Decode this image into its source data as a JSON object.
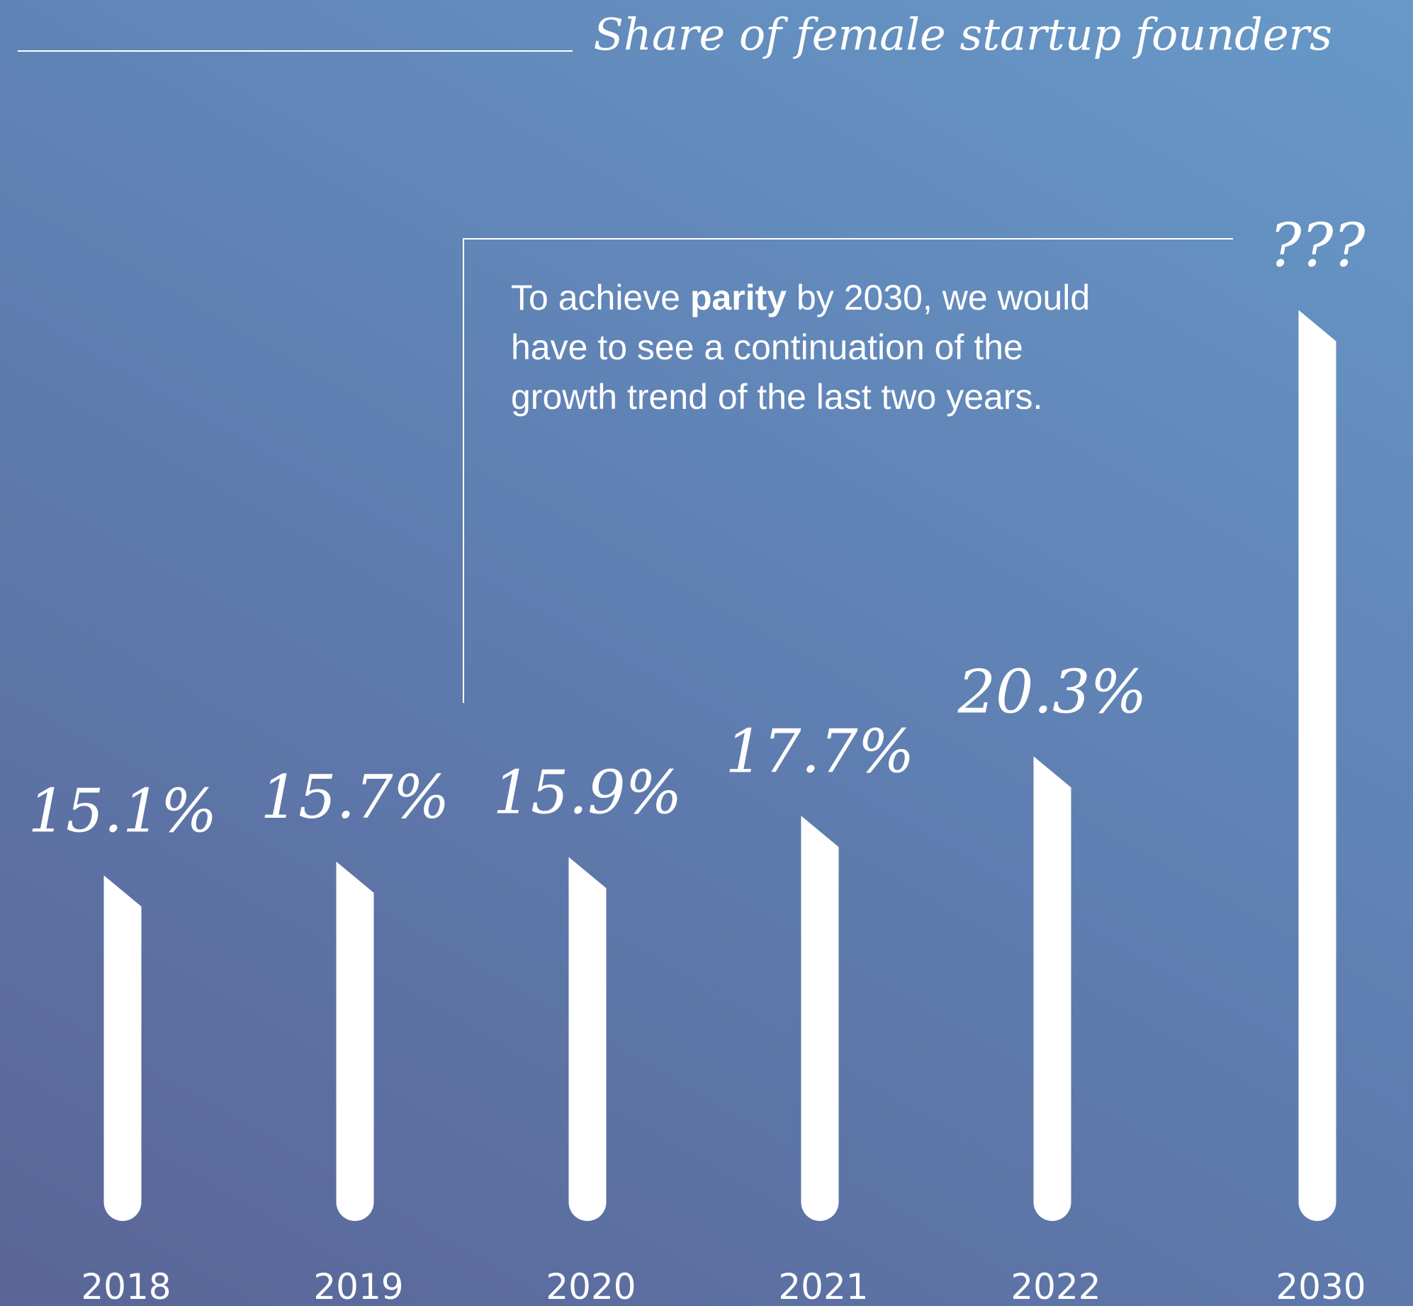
{
  "chart_data": {
    "type": "bar",
    "title": "Share of female startup founders",
    "categories": [
      "2018",
      "2019",
      "2020",
      "2021",
      "2022",
      "2030"
    ],
    "values": [
      15.1,
      15.7,
      15.9,
      17.7,
      20.3,
      39.8
    ],
    "value_labels": [
      "15.1%",
      "15.7%",
      "15.9%",
      "17.7%",
      "20.3%",
      "???"
    ],
    "color": "#ffffff",
    "ylim": [
      0,
      50
    ],
    "annotation": [
      [
        "To achieve ",
        "parity",
        " by 2030, we would"
      ],
      "have to see a continuation of the",
      "growth trend of the last two years."
    ]
  }
}
